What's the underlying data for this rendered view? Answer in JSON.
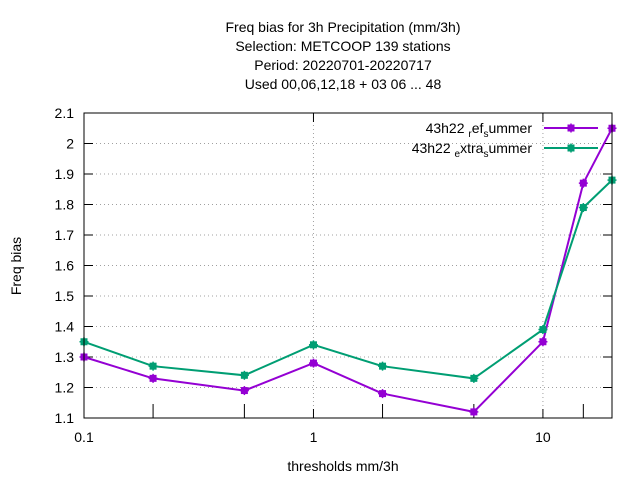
{
  "chart_data": {
    "type": "line",
    "title_lines": [
      "Freq bias  for 3h Precipitation (mm/3h)",
      "Selection: METCOOP    139 stations",
      "Period: 20220701-20220717",
      "Used  00,06,12,18  + 03 06 ... 48"
    ],
    "xlabel": "thresholds mm/3h",
    "ylabel": "Freq bias",
    "x_scale": "log",
    "xlim": [
      0.1,
      20
    ],
    "ylim": [
      1.1,
      2.1
    ],
    "x_tick_labels": [
      {
        "value": 0.1,
        "label": "0.1"
      },
      {
        "value": 1,
        "label": "1"
      },
      {
        "value": 10,
        "label": "10"
      }
    ],
    "x_minor_ticks": [
      0.2,
      0.5,
      2,
      5,
      15,
      20
    ],
    "y_ticks": [
      1.1,
      1.2,
      1.3,
      1.4,
      1.5,
      1.6,
      1.7,
      1.8,
      1.9,
      2.0,
      2.1
    ],
    "y_tick_labels": [
      "1.1",
      "1.2",
      "1.3",
      "1.4",
      "1.5",
      "1.6",
      "1.7",
      "1.8",
      "1.9",
      "2",
      "2.1"
    ],
    "grid": true,
    "legend_position": "top-right",
    "x": [
      0.1,
      0.2,
      0.5,
      1,
      2,
      5,
      10,
      15,
      20
    ],
    "series": [
      {
        "name": "43h22 ref summer",
        "legend_parts": [
          {
            "text": "43h22 ",
            "sub": false
          },
          {
            "text": "r",
            "sub": true
          },
          {
            "text": "ef",
            "sub": false
          },
          {
            "text": "s",
            "sub": true
          },
          {
            "text": "ummer",
            "sub": false
          }
        ],
        "color": "#9400d3",
        "values": [
          1.3,
          1.23,
          1.19,
          1.28,
          1.18,
          1.12,
          1.35,
          1.87,
          2.05
        ]
      },
      {
        "name": "43h22 extra summer",
        "legend_parts": [
          {
            "text": "43h22 ",
            "sub": false
          },
          {
            "text": "e",
            "sub": true
          },
          {
            "text": "xtra",
            "sub": false
          },
          {
            "text": "s",
            "sub": true
          },
          {
            "text": "ummer",
            "sub": false
          }
        ],
        "color": "#009e73",
        "values": [
          1.35,
          1.27,
          1.24,
          1.34,
          1.27,
          1.23,
          1.39,
          1.79,
          1.88
        ]
      }
    ]
  }
}
